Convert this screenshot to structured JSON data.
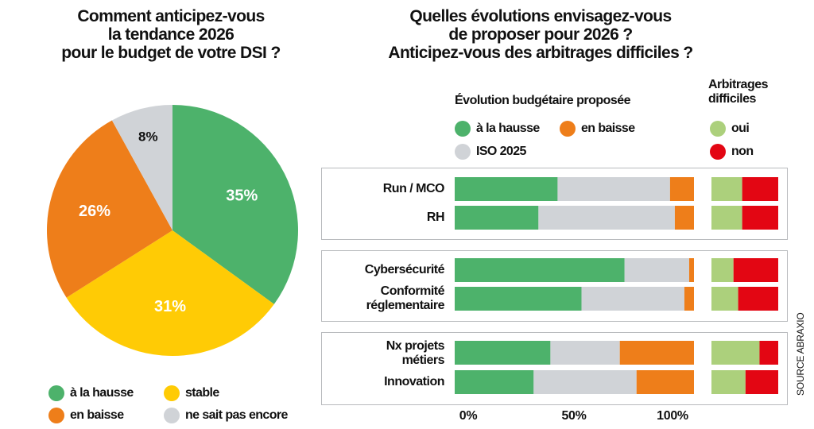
{
  "colors": {
    "hausse": "#4db26b",
    "stable": "#ffcb05",
    "baisse": "#ee7e1a",
    "gris": "#d0d3d7",
    "oui": "#acd07c",
    "non": "#e30613"
  },
  "chart_data": [
    {
      "type": "pie",
      "title": [
        "Comment anticipez-vous",
        "la tendance 2026",
        "pour le budget de votre DSI ?"
      ],
      "start": "12 o'clock, clockwise",
      "slices": [
        {
          "key": "hausse",
          "label": "à la hausse",
          "value": 35,
          "data_label": "35%"
        },
        {
          "key": "stable",
          "label": "stable",
          "value": 31,
          "data_label": "31%"
        },
        {
          "key": "baisse",
          "label": "en baisse",
          "value": 26,
          "data_label": "26%"
        },
        {
          "key": "gris",
          "label": "ne sait pas encore",
          "value": 8,
          "data_label": "8%"
        }
      ],
      "legend": [
        {
          "key": "hausse",
          "label": "à la hausse"
        },
        {
          "key": "stable",
          "label": "stable"
        },
        {
          "key": "baisse",
          "label": "en baisse"
        },
        {
          "key": "gris",
          "label": "ne sait pas encore"
        }
      ],
      "legend_placement": "bottom"
    },
    {
      "type": "bar",
      "orientation": "horizontal-stacked",
      "title": [
        "Quelles évolutions envisagez-vous",
        "de proposer pour 2026 ?",
        "Anticipez-vous des arbitrages difficiles ?"
      ],
      "subtitle_budget": "Évolution budgétaire proposée",
      "subtitle_arbitrage": [
        "Arbitrages",
        "difficiles"
      ],
      "legend_budget": [
        {
          "key": "hausse",
          "label": "à la hausse"
        },
        {
          "key": "baisse",
          "label": "en baisse"
        },
        {
          "key": "gris",
          "label": "ISO 2025"
        }
      ],
      "legend_arbitrage": [
        {
          "key": "oui",
          "label": "oui"
        },
        {
          "key": "non",
          "label": "non"
        }
      ],
      "xlim": [
        0,
        100
      ],
      "xticks": [
        "0%",
        "50%",
        "100%"
      ],
      "groups": [
        {
          "categories": [
            {
              "label": [
                "Run / MCO"
              ],
              "hausse": 43,
              "iso": 47,
              "baisse": 10,
              "oui": 46,
              "non": 54
            },
            {
              "label": [
                "RH"
              ],
              "hausse": 35,
              "iso": 57,
              "baisse": 8,
              "oui": 46,
              "non": 54
            }
          ]
        },
        {
          "categories": [
            {
              "label": [
                "Cybersécurité"
              ],
              "hausse": 71,
              "iso": 27,
              "baisse": 2,
              "oui": 33,
              "non": 67
            },
            {
              "label": [
                "Conformité",
                "réglementaire"
              ],
              "hausse": 53,
              "iso": 43,
              "baisse": 4,
              "oui": 40,
              "non": 60
            }
          ]
        },
        {
          "categories": [
            {
              "label": [
                "Nx projets",
                "métiers"
              ],
              "hausse": 40,
              "iso": 29,
              "baisse": 31,
              "oui": 72,
              "non": 28
            },
            {
              "label": [
                "Innovation"
              ],
              "hausse": 33,
              "iso": 43,
              "baisse": 24,
              "oui": 51,
              "non": 49
            }
          ]
        }
      ]
    }
  ],
  "source": "SOURCE ABRAXIO"
}
